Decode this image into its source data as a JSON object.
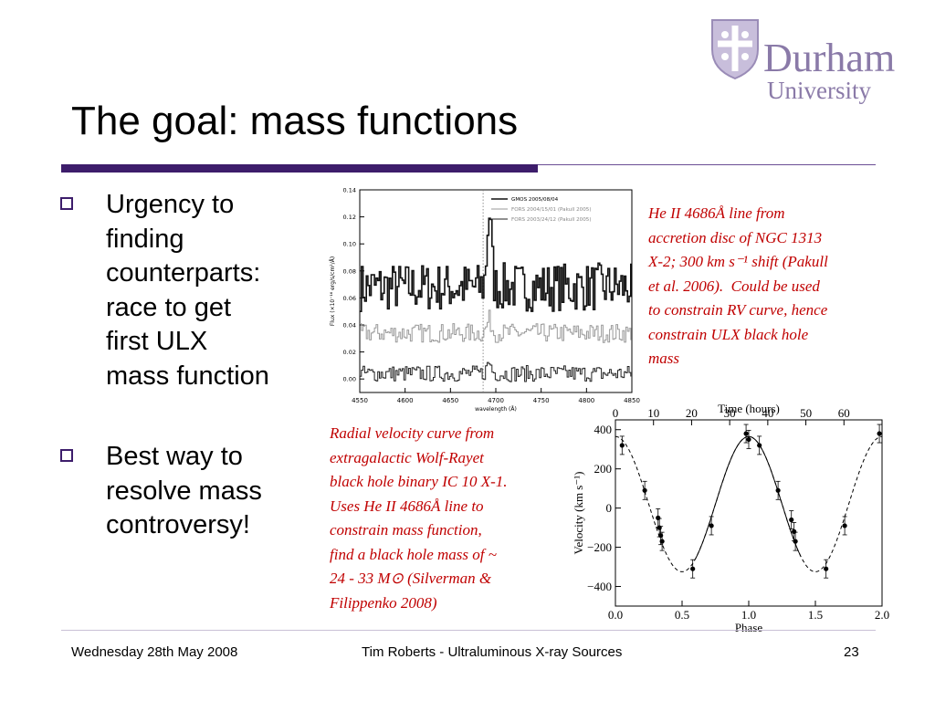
{
  "slide": {
    "title": "The goal: mass functions",
    "logo": {
      "word1": "Durham",
      "word2": "University"
    },
    "bullets": [
      "Urgency to\nfinding\ncounterparts:\nrace to get\nfirst ULX\nmass function",
      "Best way to\nresolve mass\ncontroversy!"
    ],
    "caption_top": "He II 4686Å line from\naccretion disc of NGC 1313\nX-2; 300 km s⁻¹ shift (Pakull\net al. 2006).  Could be used\nto constrain RV curve, hence\nconstrain ULX black hole\nmass",
    "caption_bottom": "Radial velocity curve from\nextragalactic Wolf-Rayet\nblack hole binary IC 10 X-1.\nUses He II 4686Å line to\nconstrain mass function,\nfind a black hole mass of ~\n24 - 33 M⊙ (Silverman &\nFilippenko 2008)",
    "footer": {
      "date": "Wednesday 28th May 2008",
      "center": "Tim Roberts - Ultraluminous X-ray Sources",
      "page": "23"
    }
  },
  "colors": {
    "accent": "#3d1d6b",
    "caption": "#c00000",
    "logo": "#8a7aa8"
  },
  "chart_data": [
    {
      "type": "line",
      "xlabel": "wavelength (Å)",
      "ylabel": "Flux (×10⁻¹⁶ erg/s/cm²/Å)",
      "xlim": [
        4550,
        4850
      ],
      "ylim": [
        -0.01,
        0.14
      ],
      "xticks": [
        "4550",
        "4600",
        "4650",
        "4700",
        "4750",
        "4800",
        "4850"
      ],
      "yticks": [
        "0.00",
        "0.02",
        "0.04",
        "0.06",
        "0.08",
        "0.10",
        "0.12",
        "0.14"
      ],
      "legend_placement": "top-right",
      "series": [
        {
          "name": "GMOS 2005/08/04",
          "offset": 0.068,
          "amp": 0.018,
          "peak": 0.055,
          "color": "#111111",
          "width": 1.6
        },
        {
          "name": "FORS 2004/15/01 (Pakull 2005)",
          "offset": 0.034,
          "amp": 0.007,
          "peak": 0.01,
          "color": "#9a9a9a",
          "width": 1.0
        },
        {
          "name": "FORS 2003/24/12 (Pakull 2005)",
          "offset": 0.004,
          "amp": 0.006,
          "peak": 0.008,
          "color": "#222222",
          "width": 1.0
        }
      ]
    },
    {
      "type": "scatter",
      "top_xlabel": "Time (hours)",
      "top_xticks": [
        "0",
        "10",
        "20",
        "30",
        "40",
        "50",
        "60"
      ],
      "xlabel": "Phase",
      "ylabel": "Velocity (km s⁻¹)",
      "xlim": [
        0.0,
        2.0
      ],
      "ylim": [
        -500,
        450
      ],
      "xticks": [
        "0.0",
        "0.5",
        "1.0",
        "1.5",
        "2.0"
      ],
      "yticks": [
        "400",
        "200",
        "0",
        "−200",
        "−400"
      ],
      "points": [
        [
          0.05,
          320
        ],
        [
          0.22,
          90
        ],
        [
          0.32,
          -50
        ],
        [
          0.33,
          -100
        ],
        [
          0.34,
          -140
        ],
        [
          0.35,
          -170
        ],
        [
          0.58,
          -310
        ],
        [
          0.72,
          -90
        ],
        [
          0.98,
          380
        ],
        [
          1.0,
          350
        ],
        [
          1.08,
          320
        ],
        [
          1.22,
          90
        ],
        [
          1.32,
          -60
        ],
        [
          1.34,
          -120
        ],
        [
          1.35,
          -170
        ],
        [
          1.58,
          -310
        ],
        [
          1.72,
          -90
        ],
        [
          1.98,
          380
        ]
      ]
    }
  ]
}
